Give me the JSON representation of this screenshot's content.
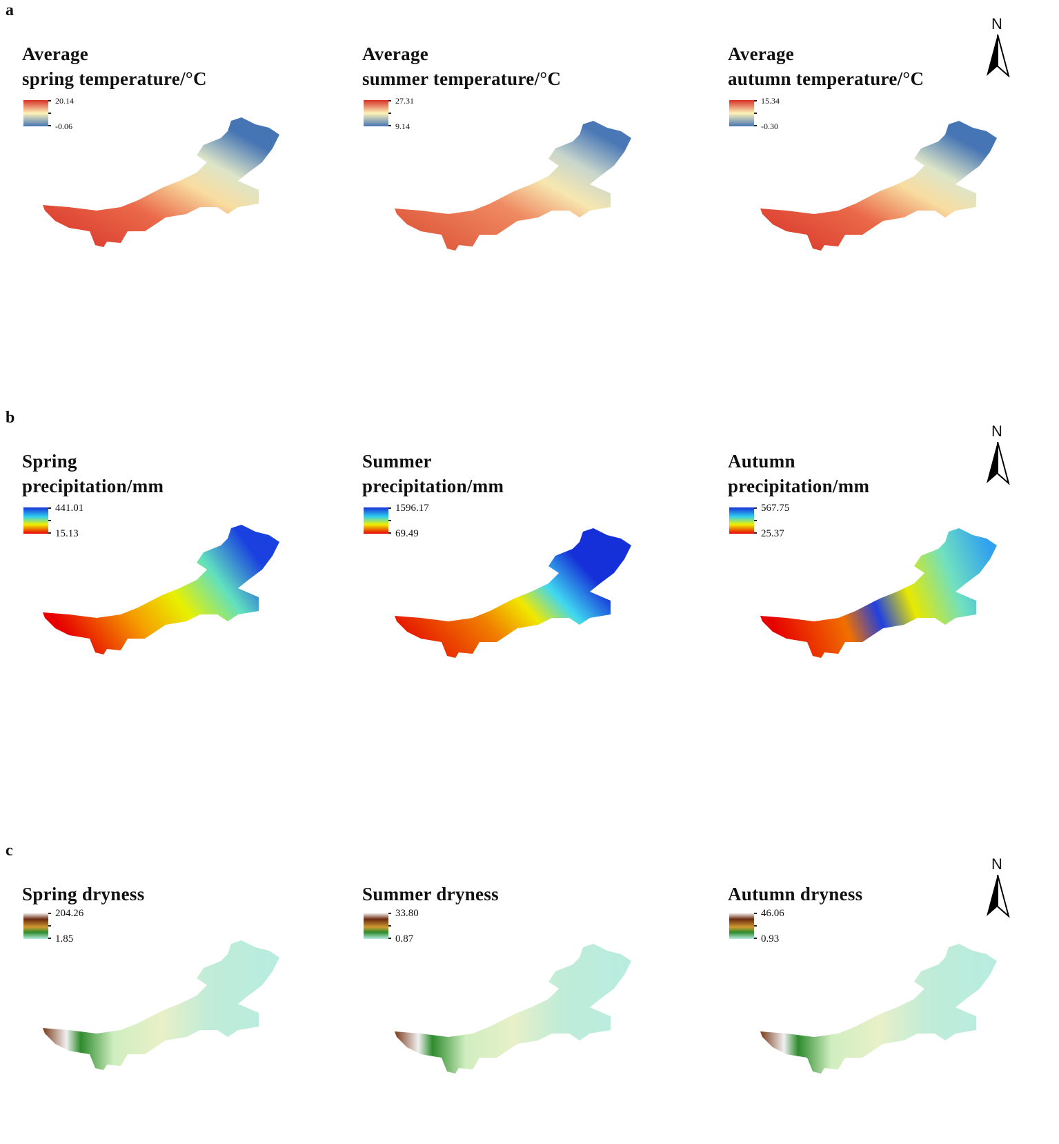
{
  "rows": [
    {
      "label": "a",
      "north": "N",
      "panels": [
        {
          "title": "Average\nspring temperature/°C",
          "max": "20.14",
          "min": "-0.06",
          "scheme": "temp"
        },
        {
          "title": "Average\nsummer temperature/°C",
          "max": "27.31",
          "min": "9.14",
          "scheme": "temp2"
        },
        {
          "title": "Average\nautumn temperature/°C",
          "max": "15.34",
          "min": "-0.30",
          "scheme": "temp"
        }
      ]
    },
    {
      "label": "b",
      "north": "N",
      "panels": [
        {
          "title": "Spring\nprecipitation/mm",
          "max": "441.01",
          "min": "15.13",
          "scheme": "prec1"
        },
        {
          "title": "Summer\nprecipitation/mm",
          "max": "1596.17",
          "min": "69.49",
          "scheme": "prec2"
        },
        {
          "title": "Autumn\nprecipitation/mm",
          "max": "567.75",
          "min": "25.37",
          "scheme": "prec3"
        }
      ]
    },
    {
      "label": "c",
      "north": "N",
      "panels": [
        {
          "title": "Spring dryness",
          "max": "204.26",
          "min": "1.85",
          "scheme": "dry"
        },
        {
          "title": "Summer dryness",
          "max": "33.80",
          "min": "0.87",
          "scheme": "dry"
        },
        {
          "title": "Autumn dryness",
          "max": "46.06",
          "min": "0.93",
          "scheme": "dry"
        }
      ]
    }
  ],
  "colors": {
    "temp_high": "#d73027",
    "temp_mid": "#fdf3b8",
    "temp_low": "#4575b4",
    "prec_low": "#e60000",
    "prec_mid": "#f0f000",
    "prec_cyan": "#30d0f0",
    "prec_high": "#1530d8",
    "dry_high": "#6b2a10",
    "dry_mid": "#2e8b2e",
    "dry_low": "#b8ece0"
  }
}
